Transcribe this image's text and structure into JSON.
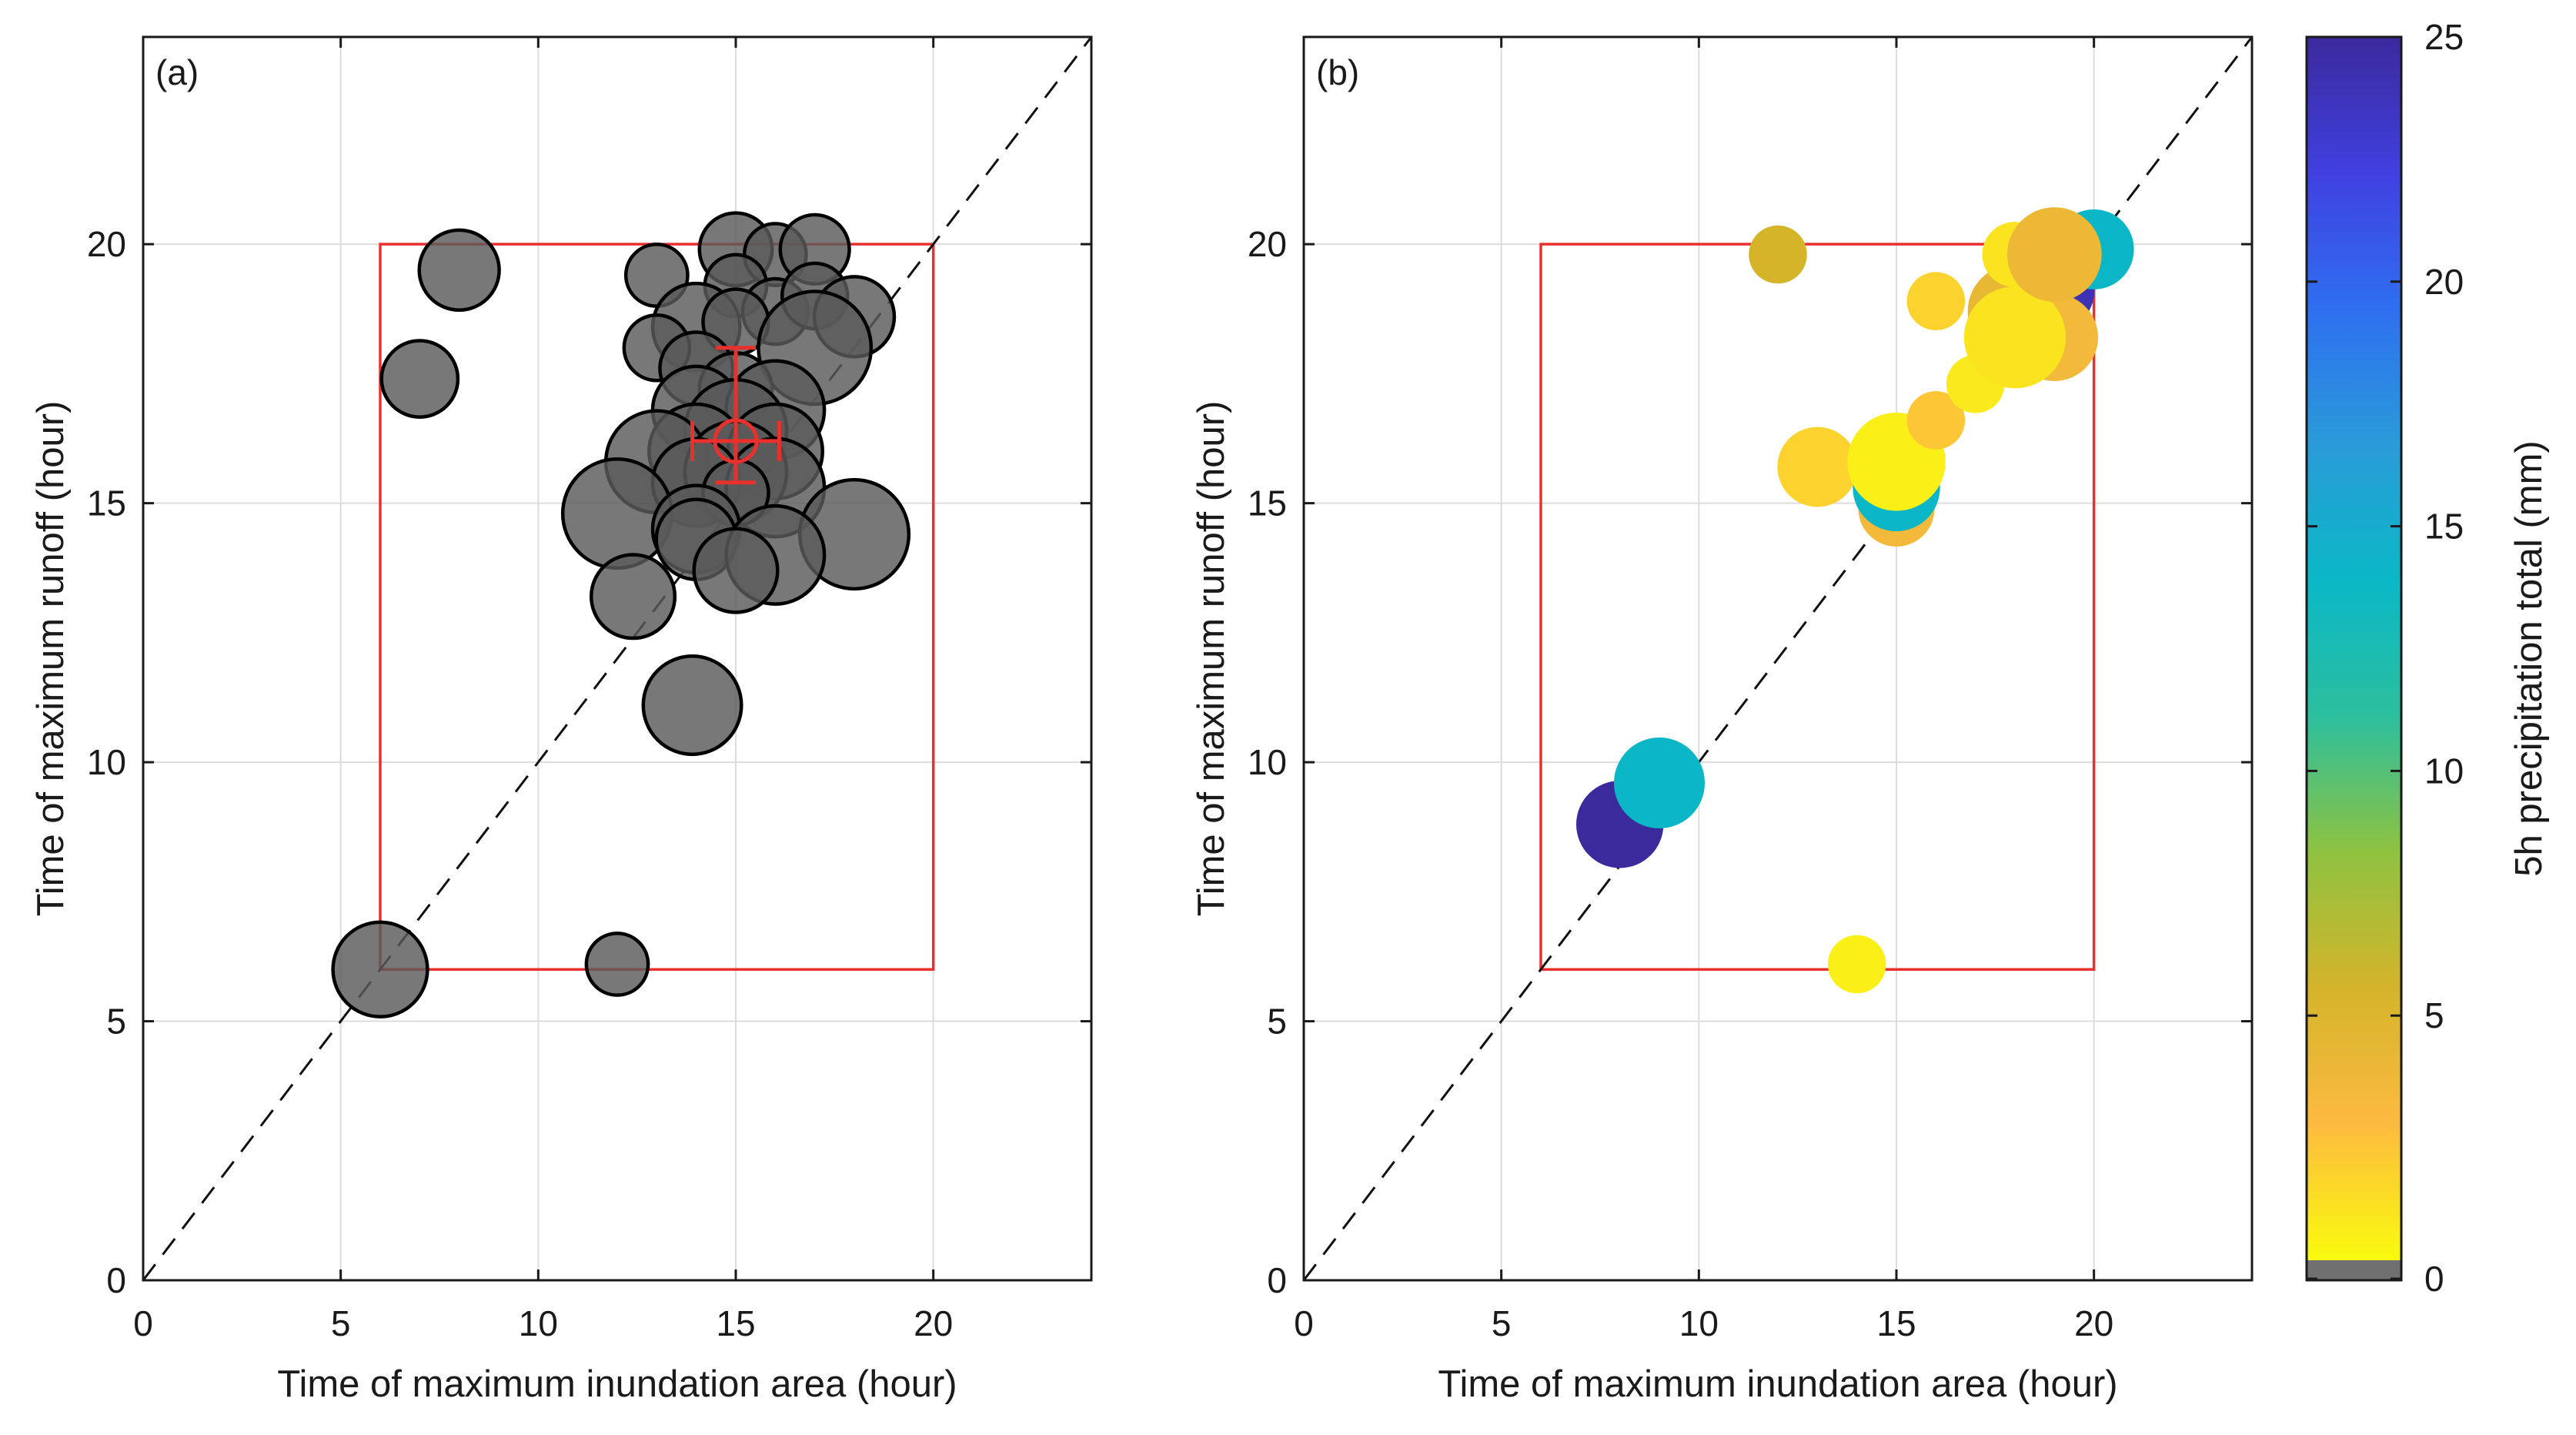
{
  "chart_data": [
    {
      "type": "scatter",
      "panel_label": "(a)",
      "xlabel": "Time of maximum inundation area (hour)",
      "ylabel": "Time of maximum runoff (hour)",
      "xlim": [
        0,
        24
      ],
      "ylim": [
        0,
        24
      ],
      "xticks": [
        0,
        5,
        10,
        15,
        20
      ],
      "yticks": [
        0,
        5,
        10,
        15,
        20
      ],
      "grid": true,
      "reference_line": {
        "style": "dashed",
        "from": [
          0,
          0
        ],
        "to": [
          24,
          24
        ]
      },
      "window": {
        "x": [
          6,
          20
        ],
        "y": [
          6,
          20
        ],
        "color": "#e8312d"
      },
      "marker_fill": "#5a5a5a",
      "marker_edge": "#000000",
      "points": [
        {
          "x": 6,
          "y": 6,
          "r": 1.3
        },
        {
          "x": 12,
          "y": 6.1,
          "r": 0.85
        },
        {
          "x": 7,
          "y": 17.4,
          "r": 1.05
        },
        {
          "x": 8,
          "y": 19.5,
          "r": 1.1
        },
        {
          "x": 13,
          "y": 19.4,
          "r": 0.85
        },
        {
          "x": 15,
          "y": 19.9,
          "r": 1.0
        },
        {
          "x": 16,
          "y": 19.8,
          "r": 0.85
        },
        {
          "x": 17,
          "y": 19.9,
          "r": 0.95
        },
        {
          "x": 15,
          "y": 19.2,
          "r": 0.85
        },
        {
          "x": 16,
          "y": 18.7,
          "r": 0.9
        },
        {
          "x": 17,
          "y": 19.0,
          "r": 0.9
        },
        {
          "x": 14,
          "y": 18.4,
          "r": 1.2
        },
        {
          "x": 15,
          "y": 18.5,
          "r": 0.9
        },
        {
          "x": 13,
          "y": 18.0,
          "r": 0.9
        },
        {
          "x": 18,
          "y": 18.6,
          "r": 1.1
        },
        {
          "x": 17,
          "y": 18.0,
          "r": 1.55
        },
        {
          "x": 14,
          "y": 17.6,
          "r": 1.0
        },
        {
          "x": 15,
          "y": 17.2,
          "r": 1.0
        },
        {
          "x": 14,
          "y": 16.8,
          "r": 1.2
        },
        {
          "x": 16,
          "y": 16.8,
          "r": 1.35
        },
        {
          "x": 15,
          "y": 16.4,
          "r": 1.4
        },
        {
          "x": 14,
          "y": 16.0,
          "r": 1.3
        },
        {
          "x": 16,
          "y": 16.0,
          "r": 1.3
        },
        {
          "x": 13,
          "y": 15.8,
          "r": 1.4
        },
        {
          "x": 15,
          "y": 15.6,
          "r": 1.4
        },
        {
          "x": 14,
          "y": 15.4,
          "r": 1.2
        },
        {
          "x": 16,
          "y": 15.3,
          "r": 1.35
        },
        {
          "x": 15,
          "y": 15.2,
          "r": 0.9
        },
        {
          "x": 12,
          "y": 14.8,
          "r": 1.5
        },
        {
          "x": 14,
          "y": 14.5,
          "r": 1.2
        },
        {
          "x": 18,
          "y": 14.4,
          "r": 1.5
        },
        {
          "x": 14,
          "y": 14.3,
          "r": 1.1
        },
        {
          "x": 16,
          "y": 14.0,
          "r": 1.35
        },
        {
          "x": 15,
          "y": 13.7,
          "r": 1.15
        },
        {
          "x": 12.4,
          "y": 13.2,
          "r": 1.15
        },
        {
          "x": 13.9,
          "y": 11.1,
          "r": 1.35
        }
      ],
      "mean_marker": {
        "x": 15,
        "y": 16.2,
        "xerr": 1.1,
        "yerr_low": 0.8,
        "yerr_high": 1.8,
        "color": "#e8312d"
      }
    },
    {
      "type": "scatter",
      "panel_label": "(b)",
      "xlabel": "Time of maximum inundation area (hour)",
      "ylabel": "Time of maximum runoff (hour)",
      "xlim": [
        0,
        24
      ],
      "ylim": [
        0,
        24
      ],
      "xticks": [
        0,
        5,
        10,
        15,
        20
      ],
      "yticks": [
        0,
        5,
        10,
        15,
        20
      ],
      "grid": true,
      "reference_line": {
        "style": "dashed",
        "from": [
          0,
          0
        ],
        "to": [
          24,
          24
        ]
      },
      "window": {
        "x": [
          6,
          20
        ],
        "y": [
          6,
          20
        ],
        "color": "#e8312d"
      },
      "points": [
        {
          "x": 8,
          "y": 8.8,
          "r": 1.2,
          "c": 25
        },
        {
          "x": 9,
          "y": 9.6,
          "r": 1.25,
          "c": 14
        },
        {
          "x": 14,
          "y": 6.1,
          "r": 0.8,
          "c": 0.5
        },
        {
          "x": 12,
          "y": 19.8,
          "r": 0.8,
          "c": 5.5
        },
        {
          "x": 15,
          "y": 14.9,
          "r": 1.05,
          "c": 3.5
        },
        {
          "x": 15,
          "y": 15.3,
          "r": 1.2,
          "c": 14
        },
        {
          "x": 13,
          "y": 15.7,
          "r": 1.1,
          "c": 1.8
        },
        {
          "x": 15,
          "y": 15.8,
          "r": 1.35,
          "c": 0.5
        },
        {
          "x": 16,
          "y": 16.6,
          "r": 0.8,
          "c": 2.3
        },
        {
          "x": 17,
          "y": 17.3,
          "r": 0.8,
          "c": 0.8
        },
        {
          "x": 16,
          "y": 18.9,
          "r": 0.8,
          "c": 1.8
        },
        {
          "x": 18,
          "y": 18.7,
          "r": 1.3,
          "c": 4.2
        },
        {
          "x": 19,
          "y": 19.1,
          "r": 1.1,
          "c": 24
        },
        {
          "x": 19,
          "y": 18.2,
          "r": 1.2,
          "c": 3.5
        },
        {
          "x": 18,
          "y": 18.2,
          "r": 1.4,
          "c": 1.0
        },
        {
          "x": 18,
          "y": 19.8,
          "r": 0.9,
          "c": 1.0
        },
        {
          "x": 20,
          "y": 19.9,
          "r": 1.1,
          "c": 14
        },
        {
          "x": 19,
          "y": 19.8,
          "r": 1.3,
          "c": 3.8
        }
      ],
      "colorbar": {
        "label": "5h precipitation total (mm)",
        "range": [
          0,
          25
        ],
        "ticks": [
          0,
          5,
          10,
          15,
          20,
          25
        ],
        "zero_color": "#707070",
        "stops": [
          "#f9fb0e",
          "#fdbb3f",
          "#d4b42a",
          "#8fc240",
          "#2cbf9e",
          "#0ab8c6",
          "#2a9bd8",
          "#2e6ff0",
          "#4040e0",
          "#3b2a9c"
        ]
      }
    }
  ]
}
